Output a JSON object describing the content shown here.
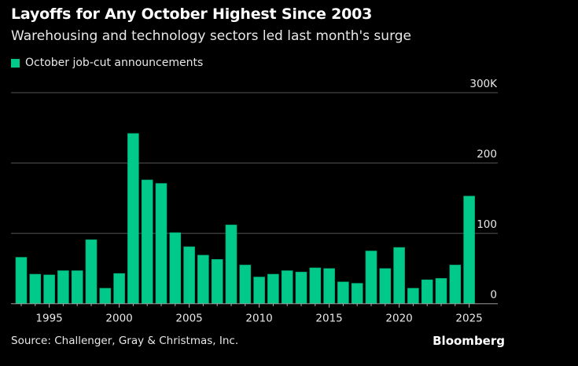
{
  "chart_data": {
    "type": "bar",
    "title": "Layoffs for Any October Highest Since 2003",
    "subtitle": "Warehousing and technology sectors led last month's surge",
    "legend": [
      "October job-cut announcements"
    ],
    "legend_position": "top-left",
    "categories": [
      1993,
      1994,
      1995,
      1996,
      1997,
      1998,
      1999,
      2000,
      2001,
      2002,
      2003,
      2004,
      2005,
      2006,
      2007,
      2008,
      2009,
      2010,
      2011,
      2012,
      2013,
      2014,
      2015,
      2016,
      2017,
      2018,
      2019,
      2020,
      2021,
      2022,
      2023,
      2024,
      2025
    ],
    "values": [
      66,
      42,
      41,
      47,
      47,
      91,
      22,
      43,
      242,
      176,
      171,
      101,
      81,
      69,
      63,
      112,
      55,
      38,
      42,
      47,
      45,
      51,
      50,
      31,
      29,
      75,
      50,
      80,
      22,
      34,
      36,
      55,
      153
    ],
    "unit": "thousands",
    "ylim": [
      0,
      300
    ],
    "yticks": [
      0,
      100,
      200,
      300
    ],
    "ytick_labels": [
      "0",
      "100",
      "200",
      "300K"
    ],
    "xtick_labels": [
      "1995",
      "2000",
      "2005",
      "2010",
      "2015",
      "2020",
      "2025"
    ],
    "grid": true,
    "color": "#00c98a"
  },
  "footer": {
    "source": "Source: Challenger, Gray & Christmas, Inc.",
    "brand": "Bloomberg"
  }
}
